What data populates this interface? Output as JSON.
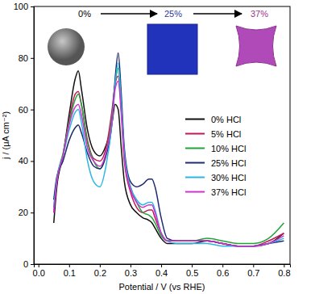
{
  "chart_data": {
    "type": "line",
    "x_label": "Potential / V (vs RHE)",
    "y_label": "j / (μA cm⁻²)",
    "annotations": [
      "0%",
      "25%",
      "37%"
    ],
    "xlim": [
      -0.015,
      0.82
    ],
    "xticks": [
      {
        "value": 0,
        "label": "0.0"
      },
      0.1,
      0.2,
      0.3,
      0.4,
      0.5,
      0.6,
      0.7,
      0.8
    ],
    "ylim": [
      0,
      100
    ],
    "yticks": [
      0,
      20,
      40,
      60,
      80,
      100
    ],
    "legend": "center right",
    "grid": false,
    "x": [
      0.05,
      0.06,
      0.08,
      0.1,
      0.12,
      0.13,
      0.14,
      0.16,
      0.18,
      0.2,
      0.22,
      0.24,
      0.25,
      0.26,
      0.27,
      0.28,
      0.3,
      0.32,
      0.34,
      0.36,
      0.37,
      0.38,
      0.4,
      0.42,
      0.45,
      0.5,
      0.55,
      0.6,
      0.65,
      0.7,
      0.75,
      0.8
    ],
    "series": [
      {
        "name": "0% HCl",
        "color": "#111111",
        "values": [
          16,
          30,
          42,
          58,
          72,
          75,
          68,
          52,
          44,
          42,
          46,
          55,
          62,
          60,
          45,
          32,
          23,
          20,
          18,
          17,
          16,
          14,
          10,
          8,
          8,
          8,
          9,
          8,
          7,
          7,
          8,
          12
        ]
      },
      {
        "name": "5% HCl",
        "color": "#c2185b",
        "values": [
          20,
          32,
          42,
          56,
          66,
          67,
          62,
          48,
          41,
          40,
          45,
          60,
          70,
          73,
          60,
          40,
          28,
          22,
          20,
          21,
          21,
          18,
          12,
          9,
          9,
          9,
          9,
          8,
          7,
          7,
          9,
          12
        ]
      },
      {
        "name": "10% HCl",
        "color": "#22a33a",
        "values": [
          22,
          33,
          43,
          55,
          64,
          66,
          62,
          47,
          40,
          37,
          43,
          58,
          70,
          76,
          62,
          42,
          30,
          24,
          20,
          19,
          18,
          16,
          11,
          9,
          9,
          9,
          10,
          9,
          8,
          8,
          10,
          16
        ]
      },
      {
        "name": "25% HCl",
        "color": "#1f2a6e",
        "values": [
          25,
          34,
          40,
          48,
          53,
          54,
          51,
          43,
          38,
          37,
          42,
          55,
          72,
          82,
          66,
          45,
          32,
          30,
          31,
          33,
          33,
          30,
          18,
          10,
          9,
          9,
          9,
          8,
          7,
          7,
          8,
          9
        ]
      },
      {
        "name": "30% HCl",
        "color": "#29b6e6",
        "values": [
          22,
          33,
          42,
          52,
          59,
          60,
          55,
          40,
          32,
          30,
          38,
          55,
          70,
          78,
          62,
          43,
          30,
          25,
          23,
          24,
          24,
          21,
          12,
          9,
          8,
          8,
          8,
          7,
          7,
          7,
          8,
          10
        ]
      },
      {
        "name": "37% HCl",
        "color": "#cc33cc",
        "values": [
          20,
          32,
          42,
          54,
          61,
          62,
          58,
          45,
          40,
          38,
          43,
          56,
          68,
          71,
          58,
          41,
          29,
          24,
          22,
          23,
          23,
          20,
          12,
          9,
          9,
          9,
          9,
          8,
          7,
          7,
          8,
          11
        ]
      }
    ]
  }
}
